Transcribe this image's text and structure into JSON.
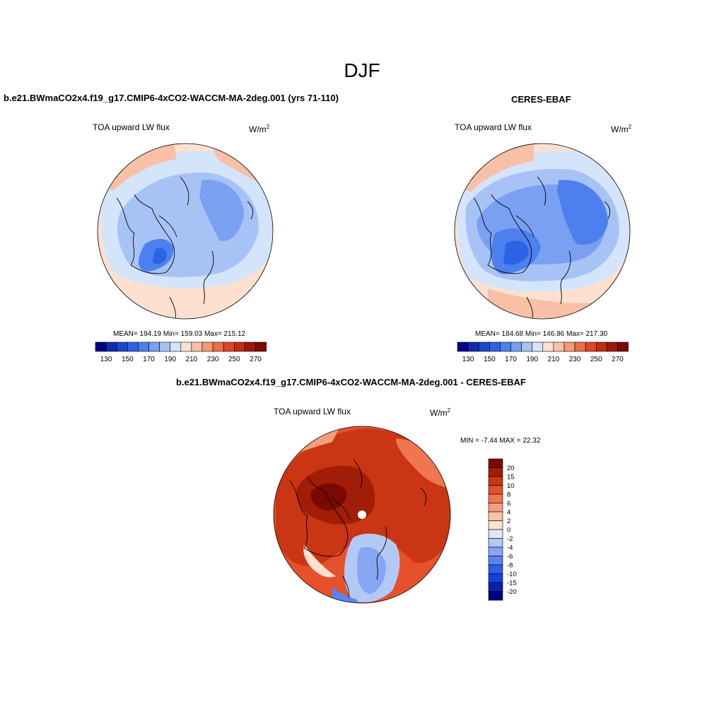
{
  "season": "DJF",
  "panels": [
    {
      "title": "b.e21.BWmaCO2x4.f19_g17.CMIP6-4xCO2-WACCM-MA-2deg.001 (yrs 71-110)",
      "variable": "TOA upward LW flux",
      "units_base": "W/m",
      "units_exp": "2",
      "stats": "MEAN= 194.19  Min= 159.03  Max= 215.12"
    },
    {
      "title": "CERES-EBAF",
      "variable": "TOA upward LW flux",
      "units_base": "W/m",
      "units_exp": "2",
      "stats": "MEAN= 184.68  Min= 146.86  Max= 217.30"
    },
    {
      "title": "b.e21.BWmaCO2x4.f19_g17.CMIP6-4xCO2-WACCM-MA-2deg.001 - CERES-EBAF",
      "variable": "TOA upward LW flux",
      "units_base": "W/m",
      "units_exp": "2",
      "stats": "MIN =  -7.44 MAX =  22.32"
    }
  ],
  "chart_data": [
    {
      "type": "heatmap",
      "projection": "north polar stereographic",
      "title": "b.e21.BWmaCO2x4.f19_g17.CMIP6-4xCO2-WACCM-MA-2deg.001 (yrs 71-110)",
      "variable": "TOA upward LW flux",
      "units": "W/m2",
      "mean": 194.19,
      "min": 159.03,
      "max": 215.12,
      "colorbar_levels": [
        130,
        140,
        150,
        160,
        170,
        180,
        190,
        200,
        210,
        220,
        230,
        240,
        250,
        260,
        270
      ],
      "colorbar_ticklabels": [
        "130",
        "150",
        "170",
        "190",
        "210",
        "230",
        "250",
        "270"
      ]
    },
    {
      "type": "heatmap",
      "projection": "north polar stereographic",
      "title": "CERES-EBAF",
      "variable": "TOA upward LW flux",
      "units": "W/m2",
      "mean": 184.68,
      "min": 146.86,
      "max": 217.3,
      "colorbar_levels": [
        130,
        140,
        150,
        160,
        170,
        180,
        190,
        200,
        210,
        220,
        230,
        240,
        250,
        260,
        270
      ],
      "colorbar_ticklabels": [
        "130",
        "150",
        "170",
        "190",
        "210",
        "230",
        "250",
        "270"
      ]
    },
    {
      "type": "heatmap",
      "projection": "north polar stereographic",
      "title": "b.e21.BWmaCO2x4.f19_g17.CMIP6-4xCO2-WACCM-MA-2deg.001 - CERES-EBAF",
      "variable": "TOA upward LW flux",
      "units": "W/m2",
      "min": -7.44,
      "max": 22.32,
      "colorbar_levels": [
        -20,
        -15,
        -10,
        -8,
        -6,
        -4,
        -2,
        0,
        2,
        4,
        6,
        8,
        10,
        15,
        20
      ],
      "colorbar_ticklabels": [
        "20",
        "15",
        "10",
        "8",
        "6",
        "4",
        "2",
        "0",
        "-2",
        "-4",
        "-6",
        "-8",
        "-10",
        "-15",
        "-20"
      ]
    }
  ],
  "palettes": {
    "abs": [
      "#00008b",
      "#0e2ab0",
      "#1748d1",
      "#2d62e4",
      "#4d80ee",
      "#7aa0f2",
      "#a7c3f5",
      "#d4e5fb",
      "#fde0cf",
      "#f8c1a7",
      "#f39b78",
      "#ec6d48",
      "#df4626",
      "#c12c0f",
      "#9b1707",
      "#7a0a00"
    ],
    "diff": [
      "#000080",
      "#0b1fb0",
      "#1a3edb",
      "#2f5deb",
      "#5a82f0",
      "#86a6f3",
      "#b2c9f6",
      "#dde8fb",
      "#fde1d1",
      "#f9c2a8",
      "#f49e7c",
      "#ee7650",
      "#e5512a",
      "#ca3513",
      "#a11d07",
      "#7c0900"
    ]
  }
}
